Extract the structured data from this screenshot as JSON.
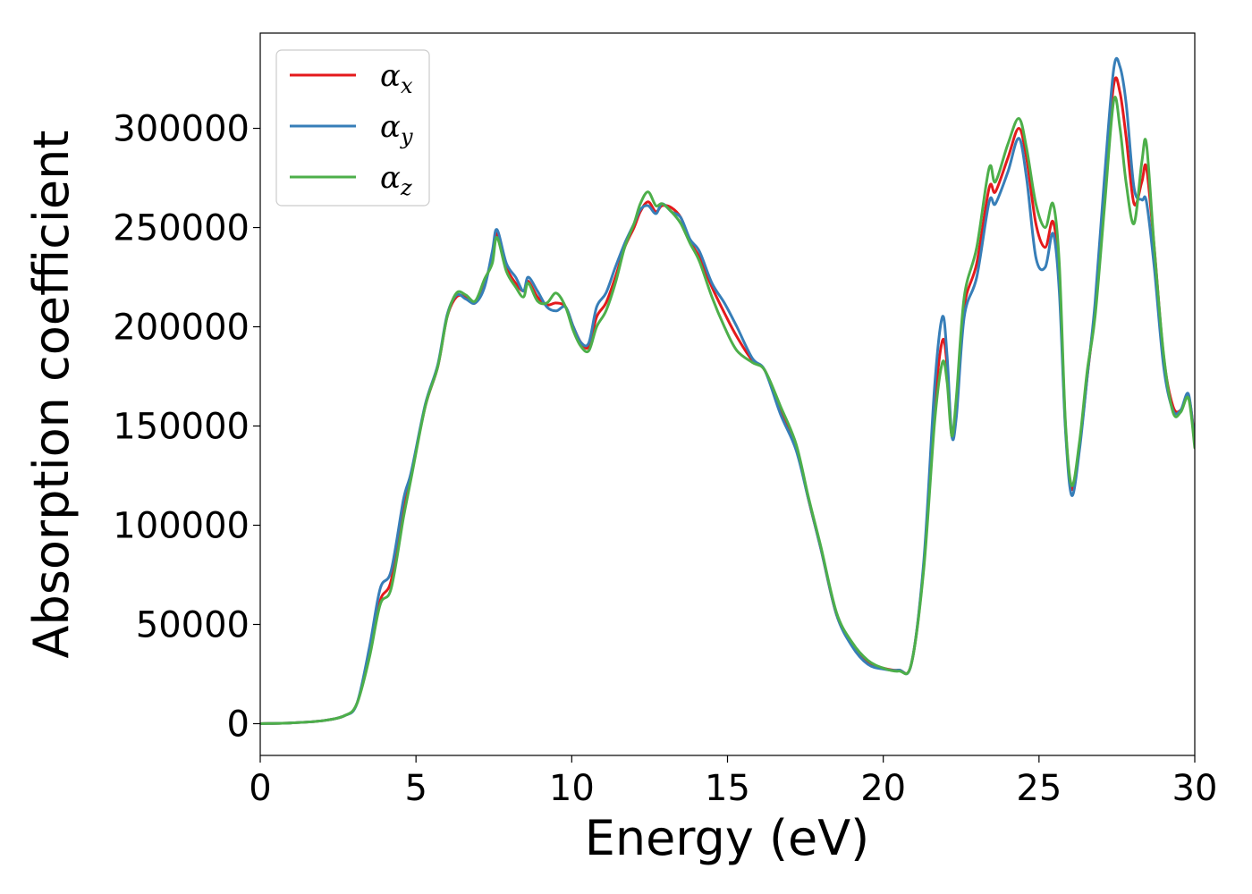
{
  "chart_data": {
    "type": "line",
    "title": "",
    "xlabel": "Energy (eV)",
    "ylabel": "Absorption coefficient",
    "xlim": [
      0,
      30
    ],
    "ylim": [
      -16000,
      348000
    ],
    "xticks": [
      0,
      5,
      10,
      15,
      20,
      25,
      30
    ],
    "xtick_labels": [
      "0",
      "5",
      "10",
      "15",
      "20",
      "25",
      "30"
    ],
    "yticks": [
      0,
      50000,
      100000,
      150000,
      200000,
      250000,
      300000
    ],
    "ytick_labels": [
      "0",
      "50000",
      "100000",
      "150000",
      "200000",
      "250000",
      "300000"
    ],
    "grid": false,
    "legend_position": "upper-left",
    "series": [
      {
        "name": "αx",
        "symbol": "α",
        "subscript": "x",
        "color": "#e41a1c",
        "points": [
          [
            0,
            0
          ],
          [
            1,
            400
          ],
          [
            2,
            1500
          ],
          [
            2.7,
            4000
          ],
          [
            3.1,
            10000
          ],
          [
            3.5,
            35000
          ],
          [
            3.85,
            62000
          ],
          [
            4.2,
            72000
          ],
          [
            4.6,
            108000
          ],
          [
            4.85,
            126000
          ],
          [
            5.3,
            160000
          ],
          [
            5.7,
            180000
          ],
          [
            6.0,
            205000
          ],
          [
            6.3,
            215000
          ],
          [
            6.6,
            215000
          ],
          [
            6.9,
            212000
          ],
          [
            7.2,
            222000
          ],
          [
            7.45,
            235000
          ],
          [
            7.6,
            247000
          ],
          [
            7.9,
            230000
          ],
          [
            8.2,
            222000
          ],
          [
            8.45,
            218000
          ],
          [
            8.6,
            223000
          ],
          [
            8.9,
            215000
          ],
          [
            9.2,
            211000
          ],
          [
            9.5,
            212000
          ],
          [
            9.8,
            210000
          ],
          [
            10.05,
            200000
          ],
          [
            10.3,
            192000
          ],
          [
            10.55,
            190000
          ],
          [
            10.8,
            205000
          ],
          [
            11.1,
            212000
          ],
          [
            11.4,
            225000
          ],
          [
            11.7,
            240000
          ],
          [
            12.0,
            250000
          ],
          [
            12.2,
            258000
          ],
          [
            12.45,
            263000
          ],
          [
            12.7,
            258000
          ],
          [
            12.9,
            261000
          ],
          [
            13.2,
            260000
          ],
          [
            13.5,
            255000
          ],
          [
            13.8,
            243000
          ],
          [
            14.1,
            235000
          ],
          [
            14.5,
            220000
          ],
          [
            14.9,
            207000
          ],
          [
            15.3,
            195000
          ],
          [
            15.8,
            183000
          ],
          [
            16.2,
            178000
          ],
          [
            16.7,
            158000
          ],
          [
            17.2,
            140000
          ],
          [
            17.6,
            113000
          ],
          [
            18.0,
            88000
          ],
          [
            18.5,
            55000
          ],
          [
            19.0,
            40000
          ],
          [
            19.5,
            31000
          ],
          [
            20.0,
            28000
          ],
          [
            20.5,
            27000
          ],
          [
            20.9,
            30000
          ],
          [
            21.3,
            80000
          ],
          [
            21.65,
            160000
          ],
          [
            21.9,
            193000
          ],
          [
            22.05,
            180000
          ],
          [
            22.2,
            145000
          ],
          [
            22.35,
            160000
          ],
          [
            22.6,
            210000
          ],
          [
            23.0,
            232000
          ],
          [
            23.4,
            270000
          ],
          [
            23.6,
            268000
          ],
          [
            24.0,
            285000
          ],
          [
            24.35,
            300000
          ],
          [
            24.6,
            285000
          ],
          [
            24.9,
            252000
          ],
          [
            25.2,
            240000
          ],
          [
            25.45,
            253000
          ],
          [
            25.65,
            225000
          ],
          [
            25.85,
            150000
          ],
          [
            26.05,
            118000
          ],
          [
            26.3,
            140000
          ],
          [
            26.55,
            175000
          ],
          [
            26.8,
            210000
          ],
          [
            27.1,
            270000
          ],
          [
            27.4,
            322000
          ],
          [
            27.6,
            318000
          ],
          [
            27.8,
            295000
          ],
          [
            28.05,
            262000
          ],
          [
            28.3,
            273000
          ],
          [
            28.45,
            280000
          ],
          [
            28.7,
            240000
          ],
          [
            29.0,
            185000
          ],
          [
            29.3,
            160000
          ],
          [
            29.55,
            158000
          ],
          [
            29.8,
            165000
          ],
          [
            30.0,
            143000
          ]
        ]
      },
      {
        "name": "αy",
        "symbol": "α",
        "subscript": "y",
        "color": "#377eb8",
        "points": [
          [
            0,
            0
          ],
          [
            1,
            400
          ],
          [
            2,
            1500
          ],
          [
            2.7,
            4000
          ],
          [
            3.1,
            10000
          ],
          [
            3.5,
            38000
          ],
          [
            3.85,
            68000
          ],
          [
            4.2,
            77000
          ],
          [
            4.6,
            113000
          ],
          [
            4.85,
            127000
          ],
          [
            5.3,
            161000
          ],
          [
            5.7,
            181000
          ],
          [
            6.0,
            206000
          ],
          [
            6.3,
            216000
          ],
          [
            6.6,
            214000
          ],
          [
            6.9,
            212000
          ],
          [
            7.2,
            220000
          ],
          [
            7.45,
            238000
          ],
          [
            7.6,
            249000
          ],
          [
            7.9,
            232000
          ],
          [
            8.2,
            225000
          ],
          [
            8.45,
            218000
          ],
          [
            8.6,
            225000
          ],
          [
            8.9,
            218000
          ],
          [
            9.2,
            210000
          ],
          [
            9.5,
            208000
          ],
          [
            9.8,
            210000
          ],
          [
            10.05,
            200000
          ],
          [
            10.3,
            192000
          ],
          [
            10.55,
            192000
          ],
          [
            10.8,
            210000
          ],
          [
            11.1,
            217000
          ],
          [
            11.4,
            230000
          ],
          [
            11.7,
            242000
          ],
          [
            12.0,
            252000
          ],
          [
            12.2,
            259000
          ],
          [
            12.45,
            261000
          ],
          [
            12.7,
            257000
          ],
          [
            12.9,
            262000
          ],
          [
            13.2,
            258000
          ],
          [
            13.5,
            255000
          ],
          [
            13.8,
            244000
          ],
          [
            14.1,
            238000
          ],
          [
            14.5,
            222000
          ],
          [
            14.9,
            212000
          ],
          [
            15.3,
            200000
          ],
          [
            15.8,
            184000
          ],
          [
            16.2,
            178000
          ],
          [
            16.7,
            156000
          ],
          [
            17.2,
            138000
          ],
          [
            17.6,
            113000
          ],
          [
            18.0,
            88000
          ],
          [
            18.5,
            55000
          ],
          [
            19.0,
            39000
          ],
          [
            19.5,
            30000
          ],
          [
            20.0,
            27500
          ],
          [
            20.5,
            27000
          ],
          [
            20.9,
            30000
          ],
          [
            21.3,
            82000
          ],
          [
            21.65,
            170000
          ],
          [
            21.9,
            205000
          ],
          [
            22.05,
            185000
          ],
          [
            22.2,
            145000
          ],
          [
            22.35,
            155000
          ],
          [
            22.6,
            205000
          ],
          [
            23.0,
            225000
          ],
          [
            23.4,
            263000
          ],
          [
            23.6,
            262000
          ],
          [
            24.0,
            278000
          ],
          [
            24.35,
            295000
          ],
          [
            24.6,
            275000
          ],
          [
            24.9,
            235000
          ],
          [
            25.2,
            230000
          ],
          [
            25.45,
            247000
          ],
          [
            25.65,
            218000
          ],
          [
            25.85,
            148000
          ],
          [
            26.05,
            115000
          ],
          [
            26.3,
            138000
          ],
          [
            26.55,
            175000
          ],
          [
            26.8,
            212000
          ],
          [
            27.1,
            275000
          ],
          [
            27.4,
            330000
          ],
          [
            27.6,
            331000
          ],
          [
            27.8,
            312000
          ],
          [
            28.05,
            270000
          ],
          [
            28.3,
            264000
          ],
          [
            28.45,
            263000
          ],
          [
            28.7,
            230000
          ],
          [
            29.0,
            180000
          ],
          [
            29.3,
            158000
          ],
          [
            29.55,
            158000
          ],
          [
            29.8,
            166000
          ],
          [
            30.0,
            141000
          ]
        ]
      },
      {
        "name": "αz",
        "symbol": "α",
        "subscript": "z",
        "color": "#4daf4a",
        "points": [
          [
            0,
            0
          ],
          [
            1,
            400
          ],
          [
            2,
            1500
          ],
          [
            2.7,
            4000
          ],
          [
            3.1,
            10000
          ],
          [
            3.5,
            33000
          ],
          [
            3.85,
            60000
          ],
          [
            4.2,
            68000
          ],
          [
            4.6,
            104000
          ],
          [
            4.85,
            124000
          ],
          [
            5.3,
            160000
          ],
          [
            5.7,
            180000
          ],
          [
            6.0,
            205000
          ],
          [
            6.3,
            217000
          ],
          [
            6.6,
            216000
          ],
          [
            6.9,
            213000
          ],
          [
            7.2,
            224000
          ],
          [
            7.45,
            232000
          ],
          [
            7.6,
            245000
          ],
          [
            7.9,
            228000
          ],
          [
            8.2,
            220000
          ],
          [
            8.45,
            215000
          ],
          [
            8.6,
            222000
          ],
          [
            8.9,
            213000
          ],
          [
            9.2,
            212000
          ],
          [
            9.5,
            217000
          ],
          [
            9.8,
            210000
          ],
          [
            10.05,
            198000
          ],
          [
            10.3,
            190000
          ],
          [
            10.55,
            188000
          ],
          [
            10.8,
            200000
          ],
          [
            11.1,
            208000
          ],
          [
            11.4,
            222000
          ],
          [
            11.7,
            240000
          ],
          [
            12.0,
            252000
          ],
          [
            12.2,
            262000
          ],
          [
            12.45,
            268000
          ],
          [
            12.7,
            261000
          ],
          [
            12.9,
            262000
          ],
          [
            13.2,
            258000
          ],
          [
            13.5,
            252000
          ],
          [
            13.8,
            242000
          ],
          [
            14.1,
            233000
          ],
          [
            14.5,
            215000
          ],
          [
            14.9,
            200000
          ],
          [
            15.3,
            188000
          ],
          [
            15.8,
            182000
          ],
          [
            16.2,
            178000
          ],
          [
            16.7,
            160000
          ],
          [
            17.2,
            141000
          ],
          [
            17.6,
            114000
          ],
          [
            18.0,
            89000
          ],
          [
            18.5,
            56000
          ],
          [
            19.0,
            41000
          ],
          [
            19.5,
            32000
          ],
          [
            20.0,
            28000
          ],
          [
            20.5,
            26500
          ],
          [
            20.9,
            30000
          ],
          [
            21.3,
            78000
          ],
          [
            21.65,
            152000
          ],
          [
            21.9,
            182000
          ],
          [
            22.05,
            172000
          ],
          [
            22.2,
            145000
          ],
          [
            22.35,
            165000
          ],
          [
            22.6,
            215000
          ],
          [
            23.0,
            240000
          ],
          [
            23.4,
            280000
          ],
          [
            23.6,
            273000
          ],
          [
            24.0,
            292000
          ],
          [
            24.35,
            305000
          ],
          [
            24.6,
            290000
          ],
          [
            24.9,
            262000
          ],
          [
            25.2,
            250000
          ],
          [
            25.45,
            262000
          ],
          [
            25.65,
            232000
          ],
          [
            25.85,
            152000
          ],
          [
            26.05,
            120000
          ],
          [
            26.3,
            142000
          ],
          [
            26.55,
            178000
          ],
          [
            26.8,
            205000
          ],
          [
            27.1,
            260000
          ],
          [
            27.4,
            314000
          ],
          [
            27.6,
            300000
          ],
          [
            27.8,
            272000
          ],
          [
            28.05,
            252000
          ],
          [
            28.3,
            283000
          ],
          [
            28.45,
            292000
          ],
          [
            28.7,
            240000
          ],
          [
            29.0,
            186000
          ],
          [
            29.3,
            157000
          ],
          [
            29.55,
            157000
          ],
          [
            29.8,
            164000
          ],
          [
            30.0,
            139000
          ]
        ]
      }
    ]
  }
}
